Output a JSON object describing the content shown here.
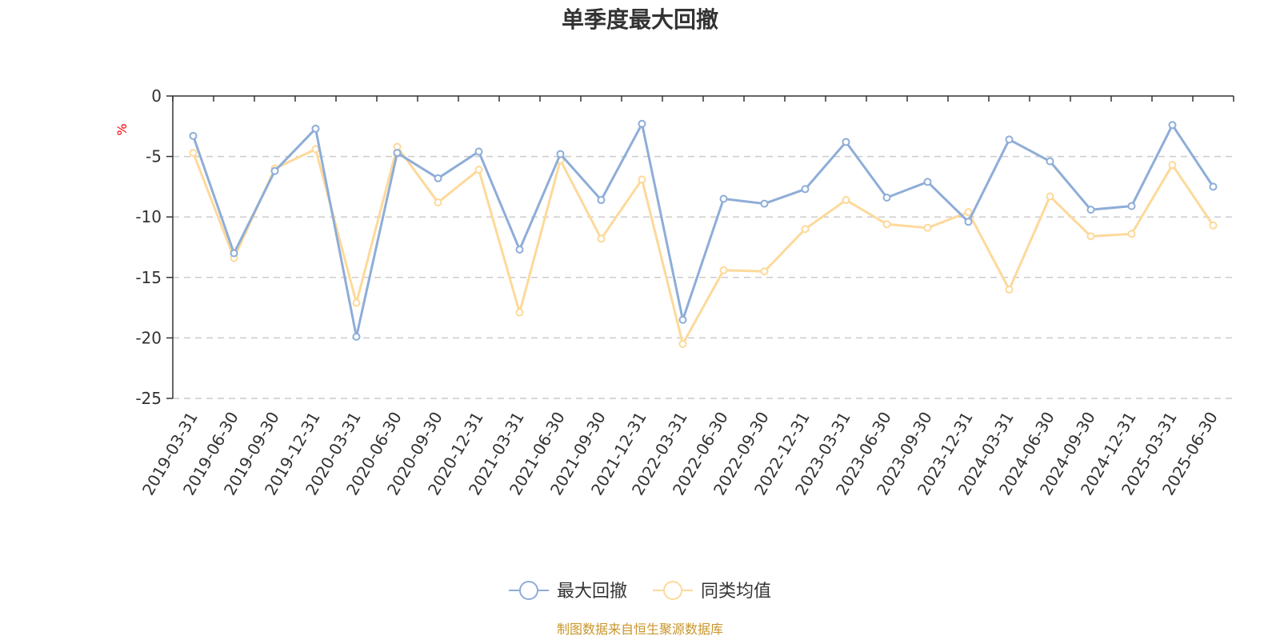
{
  "chart_data": {
    "type": "line",
    "title": "单季度最大回撤",
    "ylabel": "%",
    "xlabel": "",
    "ylim": [
      -25,
      0
    ],
    "yticks": [
      0,
      -5,
      -10,
      -15,
      -20,
      -25
    ],
    "grid": true,
    "legend_position": "bottom",
    "categories": [
      "2019-03-31",
      "2019-06-30",
      "2019-09-30",
      "2019-12-31",
      "2020-03-31",
      "2020-06-30",
      "2020-09-30",
      "2020-12-31",
      "2021-03-31",
      "2021-06-30",
      "2021-09-30",
      "2021-12-31",
      "2022-03-31",
      "2022-06-30",
      "2022-09-30",
      "2022-12-31",
      "2023-03-31",
      "2023-06-30",
      "2023-09-30",
      "2023-12-31",
      "2024-03-31",
      "2024-06-30",
      "2024-09-30",
      "2024-12-31",
      "2025-03-31",
      "2025-06-30"
    ],
    "series": [
      {
        "name": "最大回撤",
        "color": "#8eadd8",
        "values": [
          -3.3,
          -13.0,
          -6.2,
          -2.7,
          -19.9,
          -4.7,
          -6.8,
          -4.6,
          -12.7,
          -4.8,
          -8.6,
          -2.3,
          -18.5,
          -8.5,
          -8.9,
          -7.7,
          -3.8,
          -8.4,
          -7.1,
          -10.4,
          -3.6,
          -5.4,
          -9.4,
          -9.1,
          -2.4,
          -7.5
        ]
      },
      {
        "name": "同类均值",
        "color": "#fdd99a",
        "values": [
          -4.7,
          -13.4,
          -6.0,
          -4.4,
          -17.1,
          -4.2,
          -8.8,
          -6.1,
          -17.9,
          -5.3,
          -11.8,
          -6.9,
          -20.5,
          -14.4,
          -14.5,
          -11.0,
          -8.6,
          -10.6,
          -10.9,
          -9.6,
          -16.0,
          -8.3,
          -11.6,
          -11.4,
          -5.7,
          -10.7
        ]
      }
    ],
    "source": "制图数据来自恒生聚源数据库"
  }
}
